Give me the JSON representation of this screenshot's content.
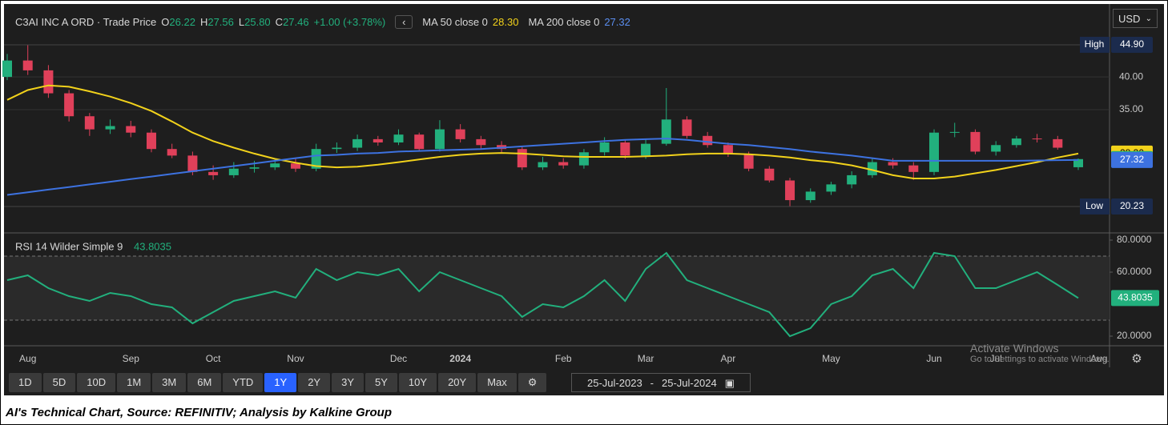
{
  "header": {
    "instrument": "C3AI INC A ORD · Trade Price",
    "quote": [
      {
        "key": "O",
        "value": "26.22"
      },
      {
        "key": "H",
        "value": "27.56"
      },
      {
        "key": "L",
        "value": "25.80"
      },
      {
        "key": "C",
        "value": "27.46"
      }
    ],
    "change": "+1.00 (+3.78%)",
    "indicator_values": [
      "28.30",
      "27.32"
    ]
  },
  "currency": "USD",
  "chart_data": [
    {
      "type": "candlestick",
      "categories": [
        null,
        "Aug",
        null,
        null,
        null,
        null,
        "Sep",
        null,
        null,
        null,
        "Oct",
        null,
        null,
        null,
        "Nov",
        null,
        null,
        null,
        null,
        "Dec",
        null,
        null,
        "2024",
        null,
        null,
        null,
        null,
        "Feb",
        null,
        null,
        null,
        "Mar",
        null,
        null,
        null,
        "Apr",
        null,
        null,
        null,
        null,
        "May",
        null,
        null,
        null,
        null,
        "Jun",
        null,
        null,
        "Jul",
        null,
        null,
        null,
        null,
        "Aug"
      ],
      "open": [
        40.0,
        42.5,
        41.0,
        37.5,
        34.0,
        32.0,
        32.5,
        31.5,
        29.0,
        28.0,
        25.5,
        25.0,
        26.0,
        26.2,
        26.8,
        26.0,
        29.0,
        29.2,
        30.5,
        30.0,
        31.2,
        29.0,
        32.0,
        30.5,
        29.6,
        29.0,
        26.2,
        27.0,
        26.5,
        28.5,
        30.0,
        28.0,
        29.8,
        33.5,
        31.0,
        29.6,
        28.2,
        26.0,
        24.2,
        21.2,
        22.5,
        23.6,
        25.0,
        27.0,
        26.5,
        25.5,
        31.5,
        31.6,
        28.6,
        29.6,
        30.6,
        30.5,
        26.22,
        null
      ],
      "high": [
        43.5,
        44.9,
        41.8,
        38.0,
        34.5,
        33.5,
        33.3,
        32.0,
        29.8,
        28.6,
        26.5,
        27.0,
        27.2,
        27.5,
        27.6,
        29.8,
        30.0,
        31.2,
        31.0,
        32.0,
        31.5,
        33.4,
        32.8,
        31.0,
        30.2,
        29.5,
        27.8,
        27.6,
        29.0,
        30.8,
        30.4,
        30.5,
        38.3,
        34.0,
        31.6,
        30.0,
        28.6,
        26.4,
        24.6,
        23.0,
        24.0,
        25.6,
        27.5,
        27.6,
        27.0,
        32.0,
        33.0,
        32.0,
        30.2,
        31.0,
        31.3,
        31.0,
        27.56,
        null
      ],
      "low": [
        39.5,
        40.3,
        36.8,
        33.2,
        31.0,
        31.3,
        30.8,
        28.5,
        27.6,
        25.0,
        24.3,
        24.6,
        25.4,
        25.8,
        25.5,
        25.6,
        28.4,
        28.7,
        29.5,
        29.6,
        28.6,
        28.6,
        30.0,
        29.0,
        28.5,
        25.8,
        25.8,
        26.0,
        26.0,
        28.0,
        27.5,
        27.5,
        29.5,
        30.6,
        29.2,
        27.8,
        25.6,
        23.9,
        20.23,
        20.8,
        22.0,
        23.0,
        24.6,
        26.0,
        24.3,
        25.0,
        30.8,
        28.2,
        28.0,
        29.2,
        30.0,
        28.9,
        25.8,
        null
      ],
      "close": [
        42.5,
        41.0,
        37.5,
        34.0,
        32.0,
        32.5,
        31.5,
        29.0,
        28.0,
        25.5,
        25.0,
        26.0,
        26.2,
        26.8,
        26.0,
        29.0,
        29.2,
        30.5,
        30.0,
        31.2,
        29.0,
        32.0,
        30.5,
        29.6,
        29.0,
        26.2,
        27.0,
        26.5,
        28.5,
        30.0,
        28.0,
        29.8,
        33.5,
        31.0,
        29.6,
        28.2,
        26.0,
        24.2,
        21.2,
        22.5,
        23.6,
        25.0,
        27.0,
        26.5,
        25.5,
        31.5,
        31.6,
        28.6,
        29.6,
        30.6,
        30.5,
        29.2,
        27.46,
        null
      ],
      "up_color": "#22b07d",
      "down_color": "#e0405a",
      "series": [
        {
          "name": "MA 50 close 0",
          "color": "#f2d21b",
          "values": [
            36.5,
            38.0,
            38.7,
            38.5,
            37.8,
            37.0,
            36.0,
            34.8,
            33.2,
            31.5,
            30.2,
            29.2,
            28.3,
            27.5,
            26.9,
            26.4,
            26.2,
            26.3,
            26.6,
            27.0,
            27.4,
            27.8,
            28.1,
            28.3,
            28.4,
            28.3,
            28.1,
            27.9,
            27.8,
            27.8,
            27.8,
            27.9,
            28.0,
            28.2,
            28.3,
            28.3,
            28.2,
            28.0,
            27.7,
            27.3,
            27.0,
            26.5,
            25.8,
            25.0,
            24.5,
            24.5,
            24.8,
            25.3,
            25.8,
            26.4,
            27.0,
            27.7,
            28.3,
            null
          ]
        },
        {
          "name": "MA 200 close 0",
          "color": "#3d72e0",
          "values": [
            22.0,
            22.4,
            22.8,
            23.2,
            23.6,
            24.0,
            24.4,
            24.8,
            25.2,
            25.6,
            26.0,
            26.4,
            26.8,
            27.2,
            27.6,
            28.0,
            28.1,
            28.3,
            28.4,
            28.6,
            28.7,
            28.8,
            28.9,
            29.0,
            29.2,
            29.4,
            29.6,
            29.8,
            30.0,
            30.2,
            30.4,
            30.5,
            30.6,
            30.4,
            30.1,
            29.8,
            29.6,
            29.3,
            29.0,
            28.6,
            28.3,
            28.0,
            27.6,
            27.2,
            27.2,
            27.2,
            27.2,
            27.2,
            27.2,
            27.2,
            27.25,
            27.3,
            27.32,
            null
          ]
        }
      ],
      "ylim": [
        16.2,
        51
      ],
      "yticks": [
        {
          "value": 35,
          "label": "35.00"
        },
        {
          "value": 40,
          "label": "40.00"
        }
      ],
      "grid": true,
      "price_tags": [
        {
          "tag": "High",
          "value": 44.9,
          "label": "44.90",
          "color": "#1b2b4d"
        },
        {
          "value": 28.3,
          "label": "28.30",
          "color": "#f2d21b"
        },
        {
          "value": 27.46,
          "label": "27.46",
          "color": "#22b07d"
        },
        {
          "value": 27.32,
          "label": "27.32",
          "color": "#3d72e0"
        },
        {
          "tag": "Low",
          "value": 20.23,
          "label": "20.23",
          "color": "#1b2b4d"
        }
      ]
    },
    {
      "type": "line",
      "series": [
        {
          "name": "RSI 14 Wilder Simple 9",
          "color": "#22b07d",
          "last_label": "43.8035",
          "values": [
            55,
            58,
            50,
            45,
            42,
            47,
            45,
            40,
            38,
            28,
            35,
            42,
            45,
            48,
            44,
            62,
            55,
            60,
            58,
            62,
            48,
            60,
            55,
            50,
            45,
            32,
            40,
            38,
            45,
            55,
            42,
            62,
            72,
            55,
            50,
            45,
            40,
            35,
            20,
            25,
            40,
            45,
            58,
            62,
            50,
            72,
            70,
            50,
            50,
            55,
            60,
            52,
            43.8035,
            null
          ]
        }
      ],
      "ylim": [
        14.5,
        83.5
      ],
      "yticks": [
        {
          "value": 20,
          "label": "20.0000"
        },
        {
          "value": 60,
          "label": "60.0000"
        },
        {
          "value": 80,
          "label": "80.0000"
        }
      ],
      "levels": [
        30,
        70
      ]
    }
  ],
  "range_buttons": [
    "1D",
    "5D",
    "10D",
    "1M",
    "3M",
    "6M",
    "YTD",
    "1Y",
    "2Y",
    "3Y",
    "5Y",
    "10Y",
    "20Y",
    "Max"
  ],
  "selected_range": 7,
  "date_range": {
    "from": "25-Jul-2023",
    "separator": "-",
    "to": "25-Jul-2024"
  },
  "watermark": {
    "title": "Activate Windows",
    "text": "Go to Settings to activate Windows."
  },
  "caption": "AI's Technical Chart, Source: REFINITIV; Analysis by Kalkine Group"
}
